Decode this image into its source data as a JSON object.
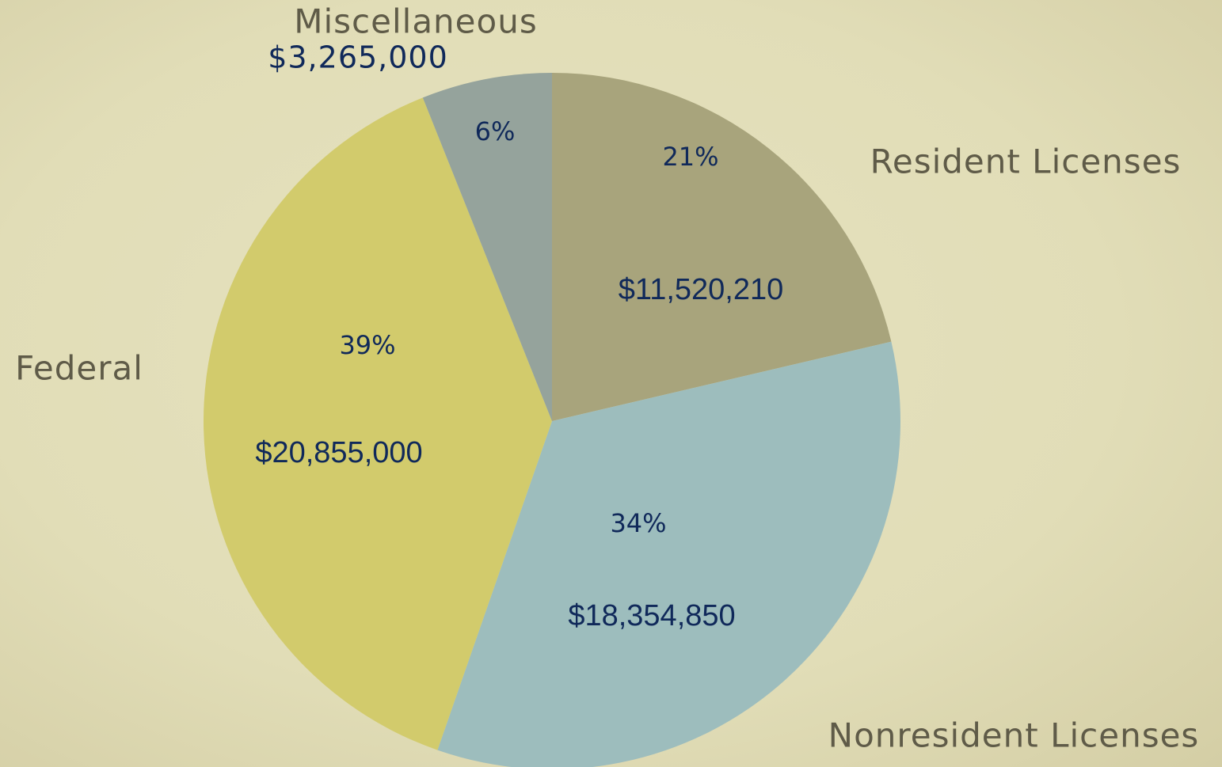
{
  "chart_data": {
    "type": "pie",
    "categories": [
      "Resident Licenses",
      "Nonresident Licenses",
      "Federal",
      "Miscellaneous"
    ],
    "values": [
      11520210,
      18354850,
      20855000,
      3265000
    ],
    "value_labels": [
      "$11,520,210",
      "$18,354,850",
      "$20,855,000",
      "$3,265,000"
    ],
    "percents": [
      21,
      34,
      39,
      6
    ],
    "percent_labels": [
      "21%",
      "34%",
      "39%",
      "6%"
    ],
    "colors": [
      "#a8a47c",
      "#9dbdbd",
      "#d2cb6c",
      "#95a39c"
    ]
  }
}
